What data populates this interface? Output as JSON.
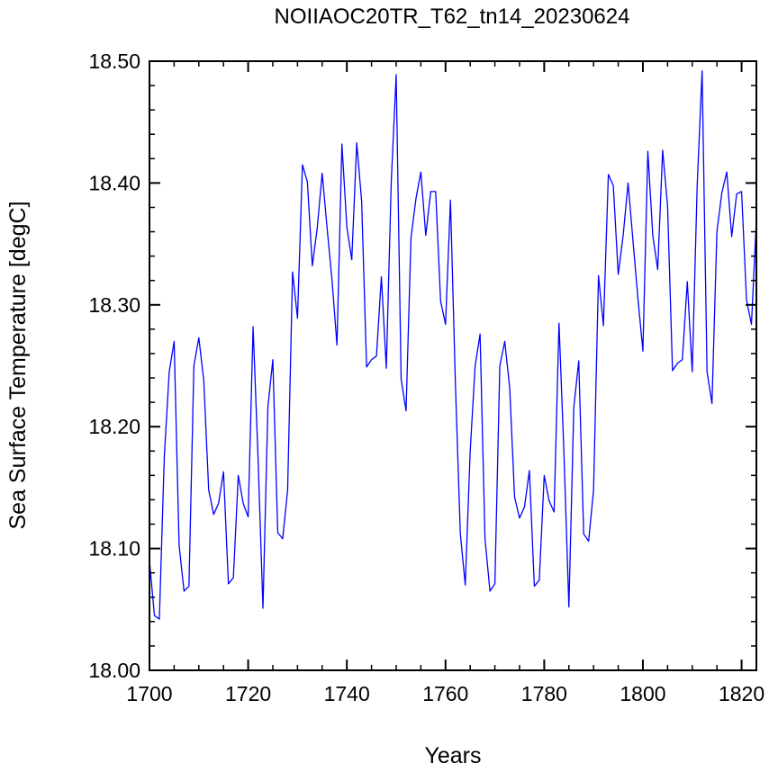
{
  "chart_data": {
    "type": "line",
    "title": "NOIIAOC20TR_T62_tn14_20230624",
    "xlabel": "Years",
    "ylabel": "Sea Surface Temperature [degC]",
    "xlim": [
      1700,
      1823
    ],
    "ylim": [
      18.0,
      18.5
    ],
    "x_ticks": [
      1700,
      1720,
      1740,
      1760,
      1780,
      1800,
      1820
    ],
    "x_tick_labels": [
      "1700",
      "1720",
      "1740",
      "1760",
      "1780",
      "1800",
      "1820"
    ],
    "y_ticks": [
      18.0,
      18.1,
      18.2,
      18.3,
      18.4,
      18.5
    ],
    "y_tick_labels": [
      "18.00",
      "18.10",
      "18.20",
      "18.30",
      "18.40",
      "18.50"
    ],
    "grid": false,
    "color": "#0000ff",
    "series": [
      {
        "x_start": 1700,
        "x_step": 1,
        "values": [
          18.09,
          18.045,
          18.042,
          18.175,
          18.245,
          18.27,
          18.103,
          18.065,
          18.069,
          18.25,
          18.273,
          18.238,
          18.148,
          18.128,
          18.137,
          18.163,
          18.071,
          18.076,
          18.16,
          18.137,
          18.126,
          18.282,
          18.175,
          18.051,
          18.216,
          18.255,
          18.113,
          18.108,
          18.148,
          18.327,
          18.289,
          18.415,
          18.401,
          18.332,
          18.363,
          18.408,
          18.363,
          18.32,
          18.267,
          18.432,
          18.364,
          18.337,
          18.433,
          18.385,
          18.249,
          18.255,
          18.258,
          18.323,
          18.248,
          18.401,
          18.489,
          18.239,
          18.213,
          18.355,
          18.387,
          18.409,
          18.357,
          18.393,
          18.393,
          18.303,
          18.284,
          18.386,
          18.235,
          18.112,
          18.07,
          18.18,
          18.25,
          18.276,
          18.108,
          18.065,
          18.071,
          18.25,
          18.27,
          18.232,
          18.142,
          18.125,
          18.134,
          18.164,
          18.069,
          18.074,
          18.16,
          18.139,
          18.13,
          18.285,
          18.178,
          18.052,
          18.216,
          18.254,
          18.112,
          18.106,
          18.148,
          18.324,
          18.283,
          18.407,
          18.398,
          18.325,
          18.357,
          18.4,
          18.352,
          18.305,
          18.262,
          18.426,
          18.357,
          18.329,
          18.427,
          18.381,
          18.246,
          18.252,
          18.255,
          18.319,
          18.245,
          18.398,
          18.492,
          18.245,
          18.219,
          18.36,
          18.392,
          18.409,
          18.356,
          18.391,
          18.393,
          18.304,
          18.284,
          18.37
        ]
      }
    ]
  }
}
